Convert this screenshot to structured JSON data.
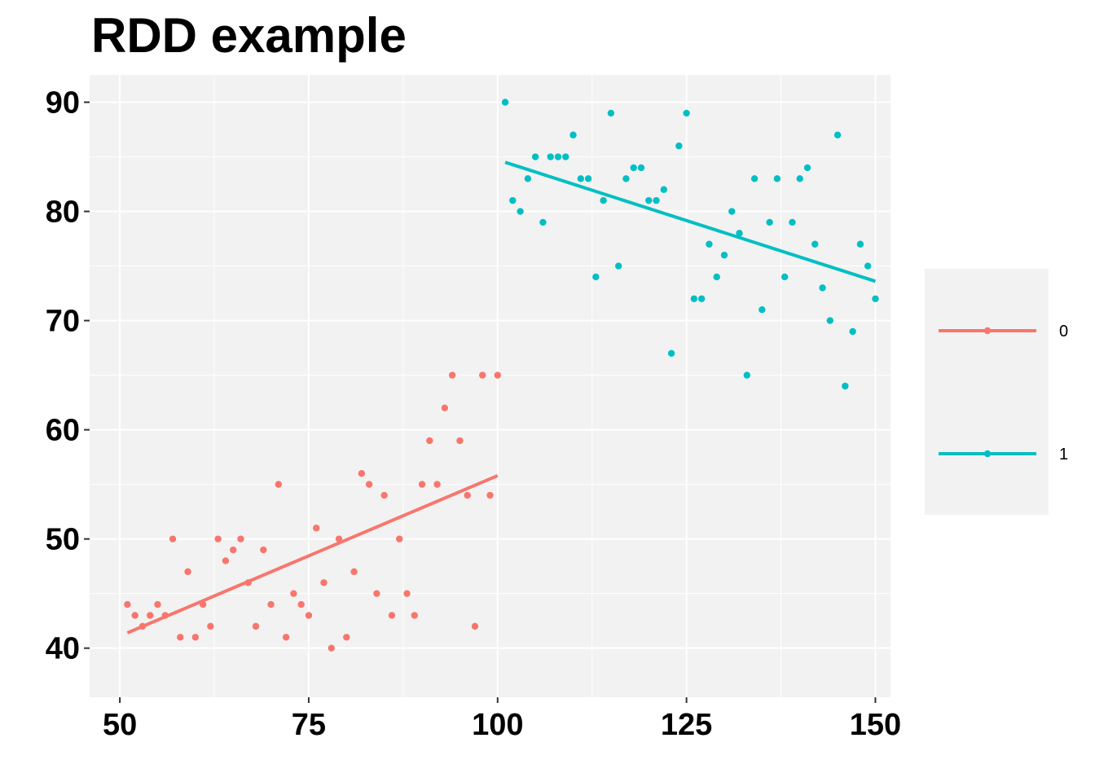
{
  "chart_data": {
    "type": "scatter",
    "title": "RDD example",
    "xlabel": "",
    "ylabel": "",
    "xlim": [
      46,
      152
    ],
    "ylim": [
      35.5,
      92.5
    ],
    "x_ticks": [
      50,
      75,
      100,
      125,
      150
    ],
    "y_ticks": [
      40,
      50,
      60,
      70,
      80,
      90
    ],
    "x_tick_labels": [
      "50",
      "75",
      "100",
      "125",
      "150"
    ],
    "y_tick_labels": [
      "40",
      "50",
      "60",
      "70",
      "80",
      "90"
    ],
    "grid": true,
    "legend_position": "right",
    "series": [
      {
        "name": "0",
        "color": "#F8766D",
        "x": [
          51,
          52,
          53,
          54,
          55,
          56,
          57,
          58,
          59,
          60,
          61,
          62,
          63,
          64,
          65,
          66,
          67,
          68,
          69,
          70,
          71,
          72,
          73,
          74,
          75,
          76,
          77,
          78,
          79,
          80,
          81,
          82,
          83,
          84,
          85,
          86,
          87,
          88,
          89,
          90,
          91,
          92,
          93,
          94,
          95,
          96,
          97,
          98,
          99,
          100
        ],
        "y": [
          44,
          43,
          42,
          43,
          44,
          43,
          50,
          41,
          47,
          41,
          44,
          42,
          50,
          48,
          49,
          50,
          46,
          42,
          49,
          44,
          55,
          41,
          45,
          44,
          43,
          51,
          46,
          40,
          50,
          41,
          47,
          56,
          55,
          45,
          54,
          43,
          50,
          45,
          43,
          55,
          59,
          55,
          62,
          65,
          59,
          54,
          42,
          65,
          54,
          65
        ],
        "fit": {
          "x": [
            51,
            100
          ],
          "y": [
            41.4,
            55.8
          ]
        }
      },
      {
        "name": "1",
        "color": "#00BFC4",
        "x": [
          101,
          102,
          103,
          104,
          105,
          106,
          107,
          108,
          109,
          110,
          111,
          112,
          113,
          114,
          115,
          116,
          117,
          118,
          119,
          120,
          121,
          122,
          123,
          124,
          125,
          126,
          127,
          128,
          129,
          130,
          131,
          132,
          133,
          134,
          135,
          136,
          137,
          138,
          139,
          140,
          141,
          142,
          143,
          144,
          145,
          146,
          147,
          148,
          149,
          150
        ],
        "y": [
          90,
          81,
          80,
          83,
          85,
          79,
          85,
          85,
          85,
          87,
          83,
          83,
          74,
          81,
          89,
          75,
          83,
          84,
          84,
          81,
          81,
          82,
          67,
          86,
          89,
          72,
          72,
          77,
          74,
          76,
          80,
          78,
          65,
          83,
          71,
          79,
          83,
          74,
          79,
          83,
          84,
          77,
          73,
          70,
          87,
          64,
          69,
          77,
          75,
          72
        ],
        "fit": {
          "x": [
            101,
            150
          ],
          "y": [
            84.5,
            73.6
          ]
        }
      }
    ]
  }
}
